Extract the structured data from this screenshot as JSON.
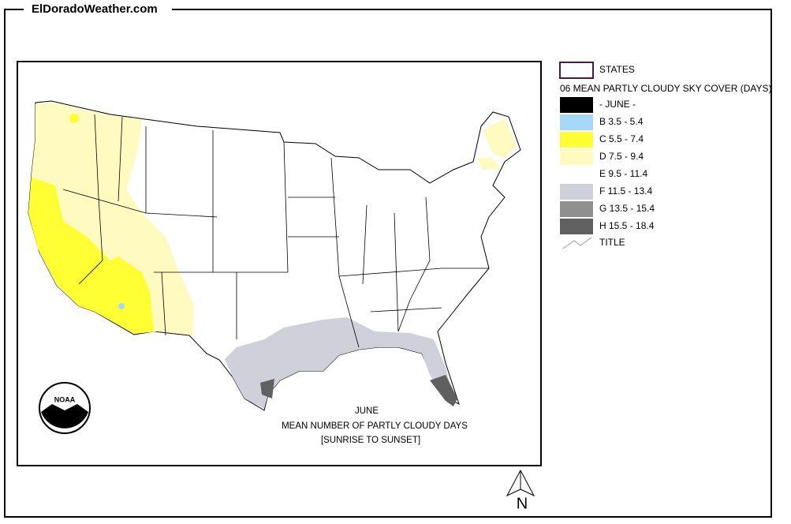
{
  "header": {
    "site": "ElDoradoWeather.com"
  },
  "legend": {
    "states": "STATES",
    "title": "06 MEAN PARTLY CLOUDY SKY COVER (DAYS)",
    "classes": [
      {
        "label": "- JUNE -",
        "color": "#000000"
      },
      {
        "label": "B 3.5 - 5.4",
        "color": "#a6d8f7"
      },
      {
        "label": "C 5.5 - 7.4",
        "color": "#ffff33"
      },
      {
        "label": "D 7.5 - 9.4",
        "color": "#fffac0"
      },
      {
        "label": "E 9.5 - 11.4",
        "color": "#ffffff"
      },
      {
        "label": "F 11.5 - 13.4",
        "color": "#cfd0d9"
      },
      {
        "label": "G 13.5 - 15.4",
        "color": "#8f8f8f"
      },
      {
        "label": "H 15.5 - 18.4",
        "color": "#606060"
      }
    ],
    "title_symbol": "TITLE"
  },
  "map": {
    "caption": [
      "JUNE",
      "MEAN NUMBER OF PARTLY CLOUDY DAYS",
      "[SUNRISE TO SUNSET]"
    ],
    "logo": "NOAA",
    "north": "N"
  }
}
